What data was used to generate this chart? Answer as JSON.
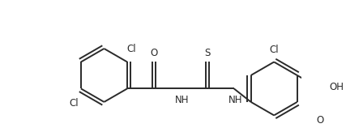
{
  "bg_color": "#ffffff",
  "line_color": "#2a2a2a",
  "line_width": 1.4,
  "font_size": 8.5,
  "fig_width": 4.48,
  "fig_height": 1.58,
  "dpi": 100,
  "xlim": [
    0.0,
    9.0
  ],
  "ylim": [
    -1.8,
    2.8
  ]
}
